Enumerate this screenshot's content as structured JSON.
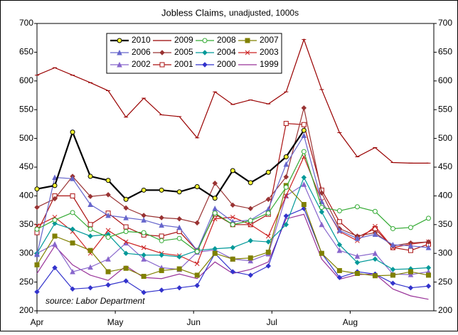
{
  "chart_data": {
    "type": "line",
    "title": "Jobless Claims,",
    "subtitle": "unadjusted, 1000s",
    "annotation": "source: Labor Department",
    "x": [
      0,
      1,
      2,
      3,
      4,
      5,
      6,
      7,
      8,
      9,
      10,
      11,
      12,
      13,
      14,
      15,
      16,
      17,
      18,
      19,
      20,
      21,
      22
    ],
    "xlim": [
      0,
      22.3
    ],
    "xticks": [
      {
        "value": 0,
        "label": "Apr"
      },
      {
        "value": 4.4,
        "label": "May"
      },
      {
        "value": 8.8,
        "label": "Jun"
      },
      {
        "value": 13.2,
        "label": "Jul"
      },
      {
        "value": 17.6,
        "label": "Aug"
      }
    ],
    "ylim": [
      200,
      700
    ],
    "yticks": [
      200,
      250,
      300,
      350,
      400,
      450,
      500,
      550,
      600,
      650,
      700
    ],
    "y2lim": [
      200,
      700
    ],
    "y2ticks": [
      200,
      250,
      300,
      350,
      400,
      450,
      500,
      550,
      600,
      650,
      700
    ],
    "legend": "top-left",
    "series": [
      {
        "name": "2010",
        "color": "#000000",
        "marker": "circle",
        "marker_fill": "#ffff33",
        "width": 2.2,
        "values": [
          412,
          418,
          511,
          434,
          427,
          394,
          410,
          410,
          407,
          416,
          396,
          444,
          423,
          441,
          468,
          514,
          null,
          null,
          null,
          null,
          null,
          null,
          null
        ]
      },
      {
        "name": "2009",
        "color": "#990000",
        "marker": "dash",
        "marker_fill": "#990000",
        "width": 1.2,
        "values": [
          610,
          623,
          610,
          597,
          583,
          537,
          570,
          541,
          538,
          501,
          581,
          559,
          567,
          560,
          581,
          672,
          585,
          510,
          468,
          484,
          458,
          457,
          457
        ]
      },
      {
        "name": "2008",
        "color": "#33aa33",
        "marker": "circle",
        "marker_fill": "#ffffff",
        "width": 1.2,
        "values": [
          342,
          358,
          371,
          342,
          328,
          338,
          336,
          322,
          326,
          303,
          370,
          350,
          357,
          370,
          415,
          477,
          380,
          374,
          381,
          373,
          343,
          345,
          361
        ]
      },
      {
        "name": "2007",
        "color": "#808000",
        "marker": "square",
        "marker_fill": "#808000",
        "width": 1.2,
        "values": [
          280,
          330,
          318,
          305,
          268,
          274,
          260,
          270,
          273,
          262,
          300,
          290,
          292,
          302,
          418,
          385,
          300,
          270,
          265,
          261,
          262,
          268,
          262
        ]
      },
      {
        "name": "2006",
        "color": "#6666cc",
        "marker": "triangle",
        "marker_fill": "#6666cc",
        "width": 1.2,
        "values": [
          298,
          432,
          430,
          385,
          366,
          362,
          358,
          349,
          345,
          305,
          378,
          355,
          358,
          377,
          455,
          505,
          390,
          340,
          326,
          333,
          315,
          313,
          310
        ]
      },
      {
        "name": "2005",
        "color": "#993333",
        "marker": "diamond",
        "marker_fill": "#993333",
        "width": 1.2,
        "values": [
          380,
          395,
          434,
          399,
          402,
          379,
          366,
          362,
          360,
          353,
          422,
          384,
          378,
          394,
          433,
          553,
          405,
          343,
          330,
          336,
          313,
          318,
          320
        ]
      },
      {
        "name": "2004",
        "color": "#009999",
        "marker": "diamond",
        "marker_fill": "#009999",
        "width": 1.2,
        "values": [
          300,
          352,
          342,
          330,
          333,
          300,
          297,
          297,
          294,
          305,
          308,
          310,
          322,
          320,
          350,
          432,
          372,
          315,
          284,
          290,
          272,
          273,
          275
        ]
      },
      {
        "name": "2003",
        "color": "#cc2222",
        "marker": "x",
        "marker_fill": "#cc2222",
        "width": 1.2,
        "values": [
          348,
          363,
          338,
          300,
          340,
          320,
          310,
          300,
          296,
          282,
          360,
          363,
          350,
          330,
          400,
          468,
          391,
          338,
          322,
          347,
          310,
          316,
          320
        ]
      },
      {
        "name": "2002",
        "color": "#8866cc",
        "marker": "triangle",
        "marker_fill": "#8866cc",
        "width": 1.2,
        "values": [
          300,
          316,
          268,
          276,
          290,
          318,
          290,
          275,
          272,
          302,
          306,
          290,
          287,
          299,
          400,
          420,
          350,
          305,
          295,
          300,
          264,
          263,
          268
        ]
      },
      {
        "name": "2001",
        "color": "#aa1111",
        "marker": "square",
        "marker_fill": "#ffffff",
        "width": 1.2,
        "values": [
          336,
          400,
          400,
          350,
          370,
          346,
          332,
          330,
          338,
          305,
          368,
          350,
          350,
          368,
          526,
          524,
          410,
          355,
          328,
          343,
          310,
          305,
          316
        ]
      },
      {
        "name": "2000",
        "color": "#3333cc",
        "marker": "diamond",
        "marker_fill": "#3333cc",
        "width": 1.2,
        "values": [
          233,
          275,
          238,
          240,
          245,
          252,
          232,
          236,
          240,
          244,
          300,
          268,
          262,
          278,
          365,
          378,
          300,
          258,
          268,
          264,
          248,
          240,
          243
        ]
      },
      {
        "name": "1999",
        "color": "#993399",
        "marker": "none",
        "marker_fill": "#993399",
        "width": 1.2,
        "values": [
          265,
          313,
          280,
          262,
          253,
          278,
          258,
          256,
          264,
          256,
          285,
          265,
          272,
          285,
          360,
          368,
          290,
          255,
          263,
          264,
          238,
          226,
          220
        ]
      }
    ]
  }
}
